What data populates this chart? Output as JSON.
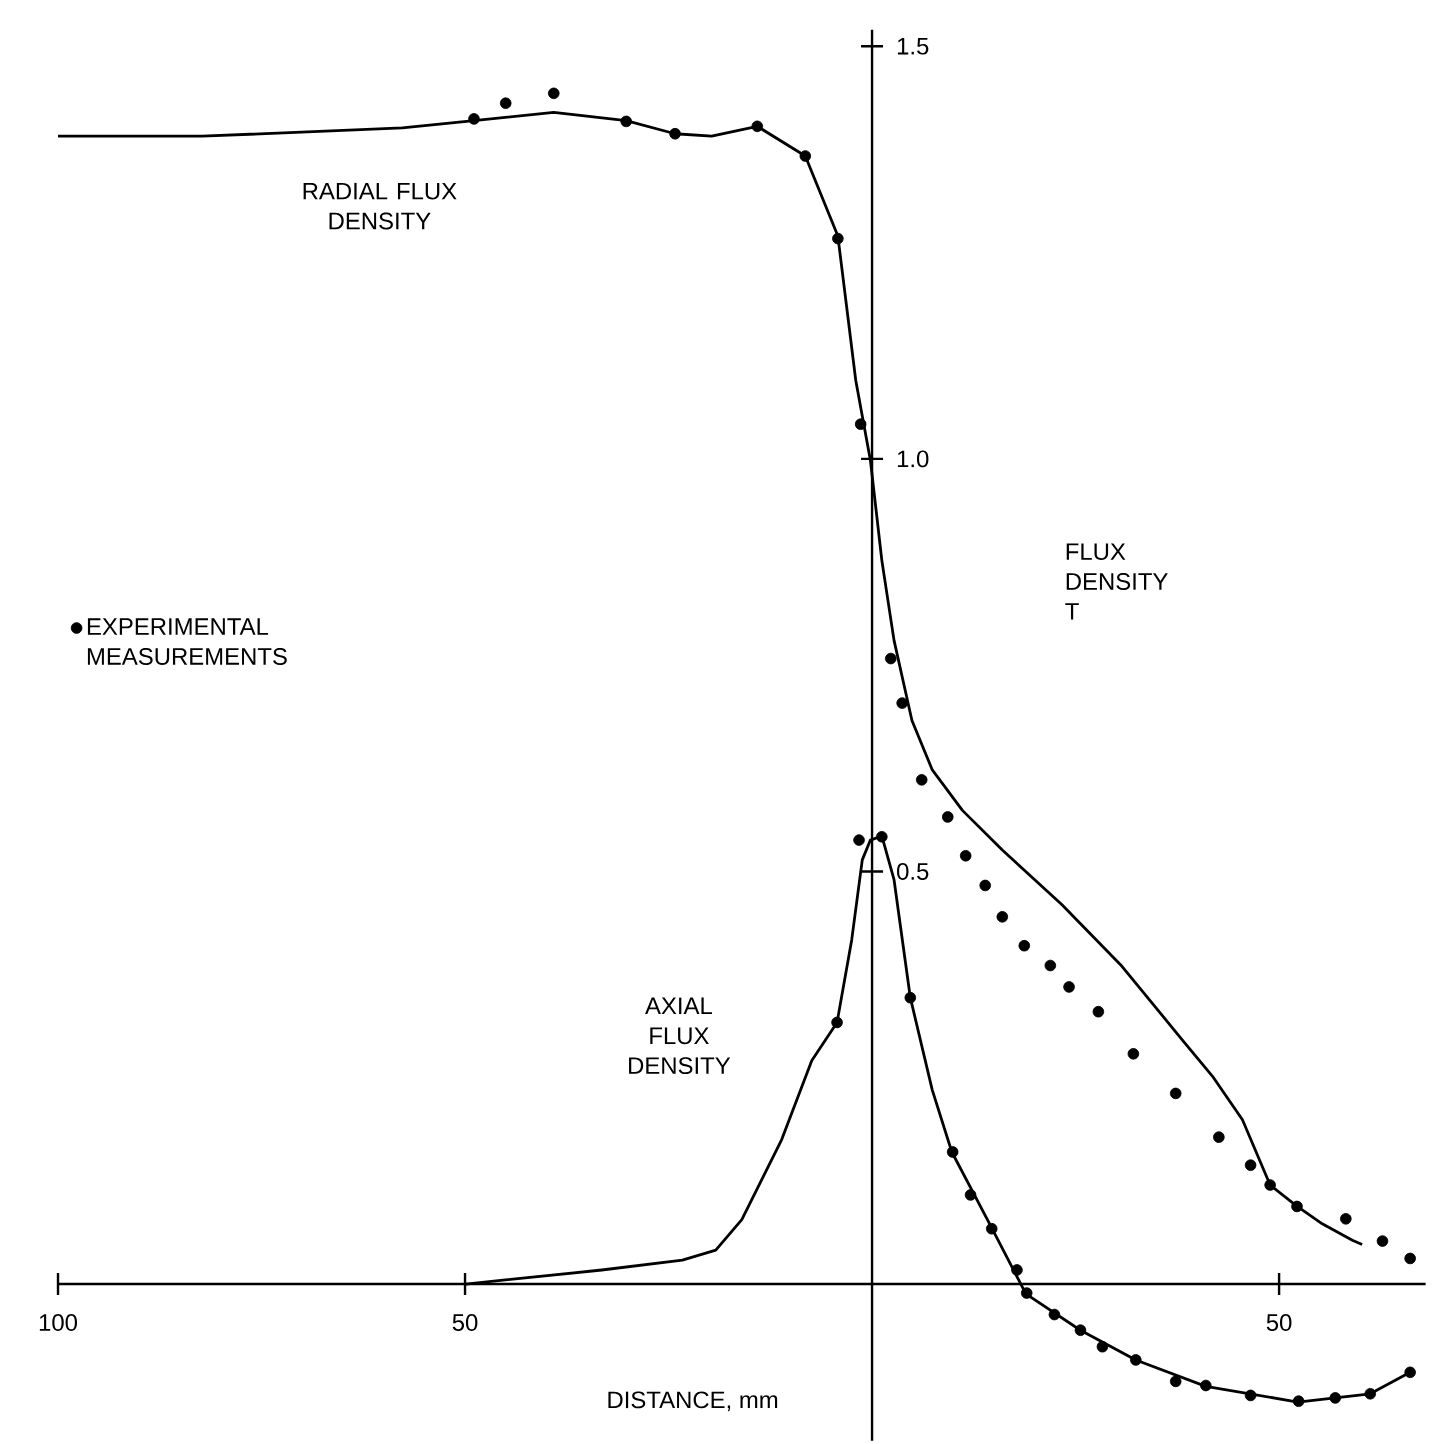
{
  "chart_data": {
    "type": "line",
    "xlabel": "DISTANCE, mm",
    "ylabel": "FLUX DENSITY T",
    "xlim": [
      -100,
      68
    ],
    "ylim": [
      -0.19,
      1.52
    ],
    "xticks": [
      {
        "value": -100,
        "label": "100"
      },
      {
        "value": -50,
        "label": "50"
      },
      {
        "value": 50,
        "label": "50"
      }
    ],
    "yticks": [
      {
        "value": 0.5,
        "label": "0.5"
      },
      {
        "value": 1,
        "label": "1.0"
      },
      {
        "value": 1.5,
        "label": "1.5"
      }
    ],
    "legend": "left",
    "series": [
      {
        "name": "RADIAL FLUX DENSITY",
        "color": "#000000",
        "marker": "none",
        "x": [
          -100,
          -82.3,
          -57.7,
          -48.9,
          -39.1,
          -30.2,
          -24.2,
          -19.7,
          -14.1,
          -8.2,
          -4.2,
          -2.0,
          -0.2,
          1.2,
          2.7,
          4.9,
          7.4,
          11.1,
          16.0,
          23.3,
          30.7,
          38.1,
          41.8,
          45.5,
          48.9,
          52.1,
          55.3,
          59.0,
          60.2
        ],
        "values": [
          1.391,
          1.391,
          1.401,
          1.41,
          1.42,
          1.41,
          1.394,
          1.391,
          1.403,
          1.367,
          1.27,
          1.095,
          0.998,
          0.877,
          0.78,
          0.683,
          0.623,
          0.574,
          0.526,
          0.46,
          0.385,
          0.296,
          0.252,
          0.199,
          0.12,
          0.095,
          0.073,
          0.053,
          0.048
        ]
      },
      {
        "name": "AXIAL FLUX DENSITY",
        "color": "#000000",
        "marker": "none",
        "x": [
          -49.9,
          -33.2,
          -23.3,
          -19.2,
          -16.0,
          -11.1,
          -7.4,
          -4.3,
          -2.5,
          -1.2,
          -0.2,
          1.2,
          2.7,
          4.7,
          7.4,
          9.8,
          14.7,
          18.9,
          25.6,
          32.4,
          41.0,
          52.3,
          61.2,
          66.1
        ],
        "values": [
          0,
          0.017,
          0.029,
          0.041,
          0.078,
          0.175,
          0.271,
          0.317,
          0.417,
          0.514,
          0.538,
          0.543,
          0.49,
          0.347,
          0.235,
          0.16,
          0.068,
          -0.012,
          -0.056,
          -0.092,
          -0.124,
          -0.143,
          -0.133,
          -0.107
        ]
      },
      {
        "name": "EXPERIMENTAL MEASUREMENTS",
        "type": "scatter",
        "color": "#000000",
        "marker": "circle",
        "x": [
          -48.9,
          -45.0,
          -39.1,
          -30.2,
          -24.2,
          -14.1,
          -8.2,
          -4.2,
          -1.4,
          2.3,
          3.7,
          6.1,
          9.3,
          11.5,
          13.9,
          16.0,
          18.7,
          21.9,
          24.2,
          27.8,
          32.1,
          37.3,
          42.6,
          46.5,
          48.9,
          52.2,
          58.2,
          62.7,
          66.1,
          -4.3,
          -1.6,
          1.2,
          4.7,
          9.9,
          12.1,
          14.7,
          17.8,
          19.0,
          22.4,
          25.6,
          28.3,
          32.4,
          37.3,
          41.0,
          46.5,
          52.4,
          56.9,
          61.2,
          66.1
        ],
        "values": [
          1.412,
          1.431,
          1.443,
          1.409,
          1.394,
          1.403,
          1.367,
          1.267,
          1.042,
          0.758,
          0.704,
          0.611,
          0.566,
          0.519,
          0.483,
          0.445,
          0.41,
          0.386,
          0.36,
          0.33,
          0.279,
          0.231,
          0.178,
          0.144,
          0.12,
          0.094,
          0.079,
          0.052,
          0.031,
          0.317,
          0.538,
          0.542,
          0.347,
          0.16,
          0.108,
          0.067,
          0.017,
          -0.011,
          -0.037,
          -0.056,
          -0.076,
          -0.092,
          -0.118,
          -0.123,
          -0.135,
          -0.142,
          -0.138,
          -0.133,
          -0.107
        ]
      }
    ]
  }
}
